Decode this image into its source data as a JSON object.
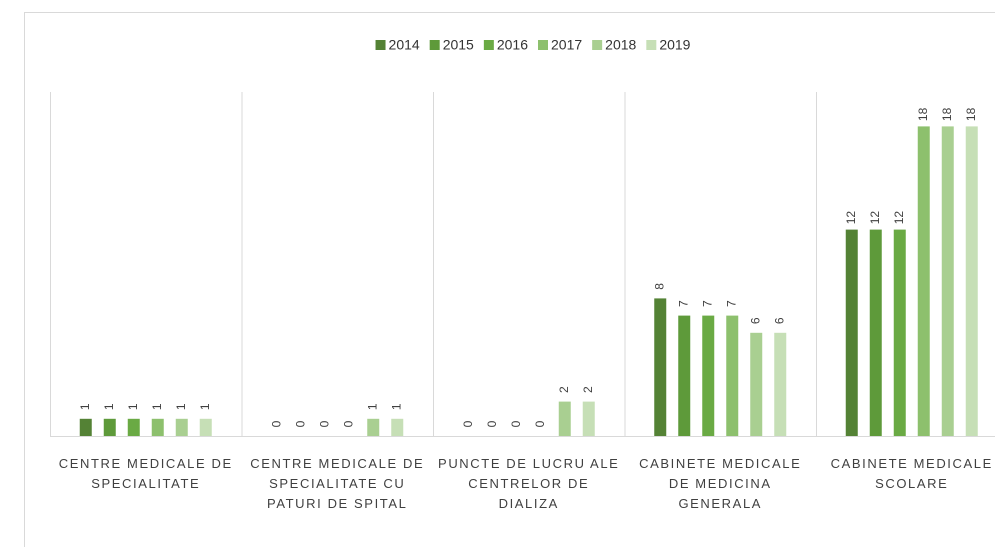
{
  "chart_data": {
    "type": "bar",
    "categories": [
      "CENTRE MEDICALE DE SPECIALITATE",
      "CENTRE MEDICALE DE SPECIALITATE CU PATURI DE SPITAL",
      "PUNCTE DE LUCRU ALE CENTRELOR DE DIALIZA",
      "CABINETE MEDICALE DE MEDICINA GENERALA",
      "CABINETE MEDICALE SCOLARE"
    ],
    "series": [
      {
        "name": "2014",
        "color": "#548235",
        "values": [
          1,
          0,
          0,
          8,
          12
        ]
      },
      {
        "name": "2015",
        "color": "#5e9a3a",
        "values": [
          1,
          0,
          0,
          7,
          12
        ]
      },
      {
        "name": "2016",
        "color": "#6aaa44",
        "values": [
          1,
          0,
          0,
          7,
          12
        ]
      },
      {
        "name": "2017",
        "color": "#8dc06d",
        "values": [
          1,
          0,
          0,
          7,
          18
        ]
      },
      {
        "name": "2018",
        "color": "#a9cf91",
        "values": [
          1,
          1,
          2,
          6,
          18
        ]
      },
      {
        "name": "2019",
        "color": "#c6dfb6",
        "values": [
          1,
          1,
          2,
          6,
          18
        ]
      }
    ],
    "ylim": [
      0,
      20
    ],
    "grid": true,
    "legend": "top"
  }
}
